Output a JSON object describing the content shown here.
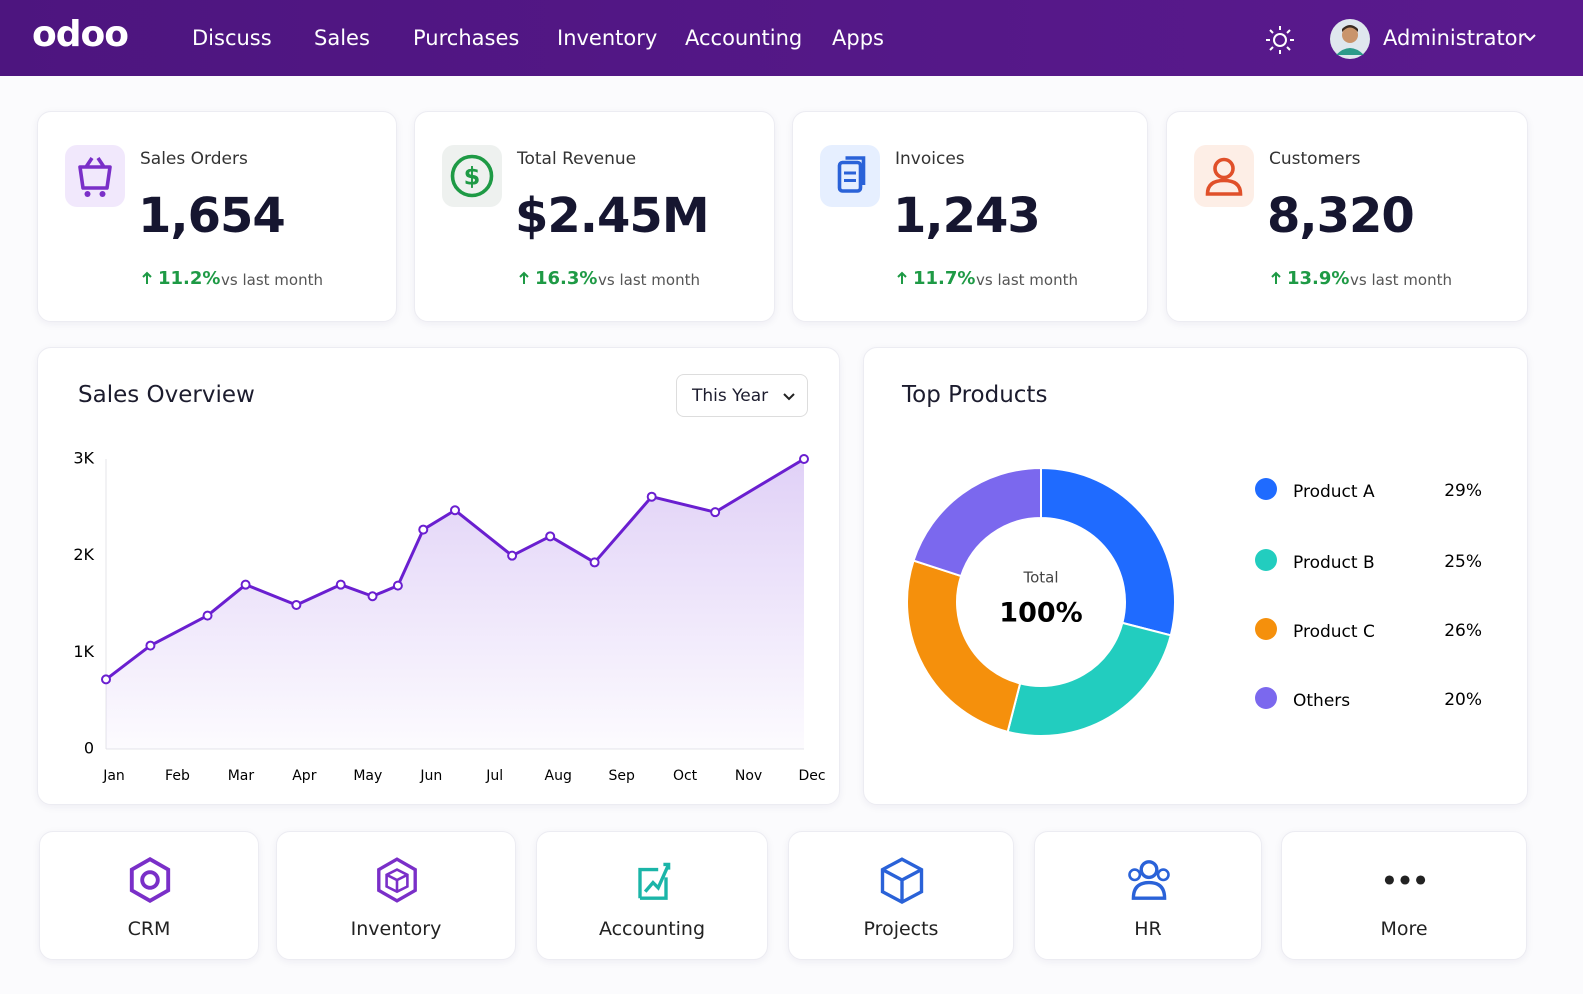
{
  "nav": {
    "logo": "odoo",
    "items": [
      "Discuss",
      "Sales",
      "Purchases",
      "Inventory",
      "Accounting",
      "Apps"
    ],
    "user": "Administrator"
  },
  "kpis": [
    {
      "label": "Sales Orders",
      "value": "1,654",
      "change": "11.2%",
      "note": "vs last month"
    },
    {
      "label": "Total Revenue",
      "value": "$2.45M",
      "change": "16.3%",
      "note": "vs last month"
    },
    {
      "label": "Invoices",
      "value": "1,243",
      "change": "11.7%",
      "note": "vs last month"
    },
    {
      "label": "Customers",
      "value": "8,320",
      "change": "13.9%",
      "note": "vs last month"
    }
  ],
  "sales_overview": {
    "title": "Sales Overview",
    "filter": "This Year",
    "chart_data": {
      "type": "line",
      "color": "#6a1fd0",
      "x": [
        0,
        0.7,
        1.6,
        2.2,
        3.0,
        3.7,
        4.2,
        4.6,
        5.0,
        5.5,
        6.4,
        7.0,
        7.7,
        8.6,
        9.6,
        11
      ],
      "values": [
        720,
        1070,
        1380,
        1700,
        1490,
        1700,
        1580,
        1690,
        2270,
        2470,
        2000,
        2200,
        1930,
        2610,
        2450,
        3000
      ],
      "xlim": [
        0,
        11
      ],
      "xticks": [
        {
          "value": 0,
          "label": "Jan"
        },
        {
          "value": 1,
          "label": "Feb"
        },
        {
          "value": 2,
          "label": "Mar"
        },
        {
          "value": 3,
          "label": "Apr"
        },
        {
          "value": 4,
          "label": "May"
        },
        {
          "value": 5,
          "label": "Jun"
        },
        {
          "value": 6,
          "label": "Jul"
        },
        {
          "value": 7,
          "label": "Aug"
        },
        {
          "value": 8,
          "label": "Sep"
        },
        {
          "value": 9,
          "label": "Oct"
        },
        {
          "value": 10,
          "label": "Nov"
        },
        {
          "value": 11,
          "label": "Dec"
        }
      ],
      "ylim": [
        0,
        3000
      ],
      "yticks": [
        0,
        {
          "value": 1000,
          "label": "1K"
        },
        {
          "value": 2000,
          "label": "2K"
        },
        {
          "value": 3000,
          "label": "3K"
        }
      ]
    }
  },
  "top_products": {
    "title": "Top Products",
    "center_label": "Total",
    "center_value": "100%",
    "chart_data": {
      "type": "pie",
      "categories": [
        "Product A",
        "Product B",
        "Product C",
        "Others"
      ],
      "values": [
        29,
        25,
        26,
        20
      ],
      "value_labels": [
        "29%",
        "25%",
        "26%",
        "20%"
      ],
      "colors": [
        "#1f6bff",
        "#22cdbf",
        "#f5900c",
        "#7b68ee"
      ]
    }
  },
  "apps": [
    "CRM",
    "Inventory",
    "Accounting",
    "Projects",
    "HR",
    "More"
  ]
}
